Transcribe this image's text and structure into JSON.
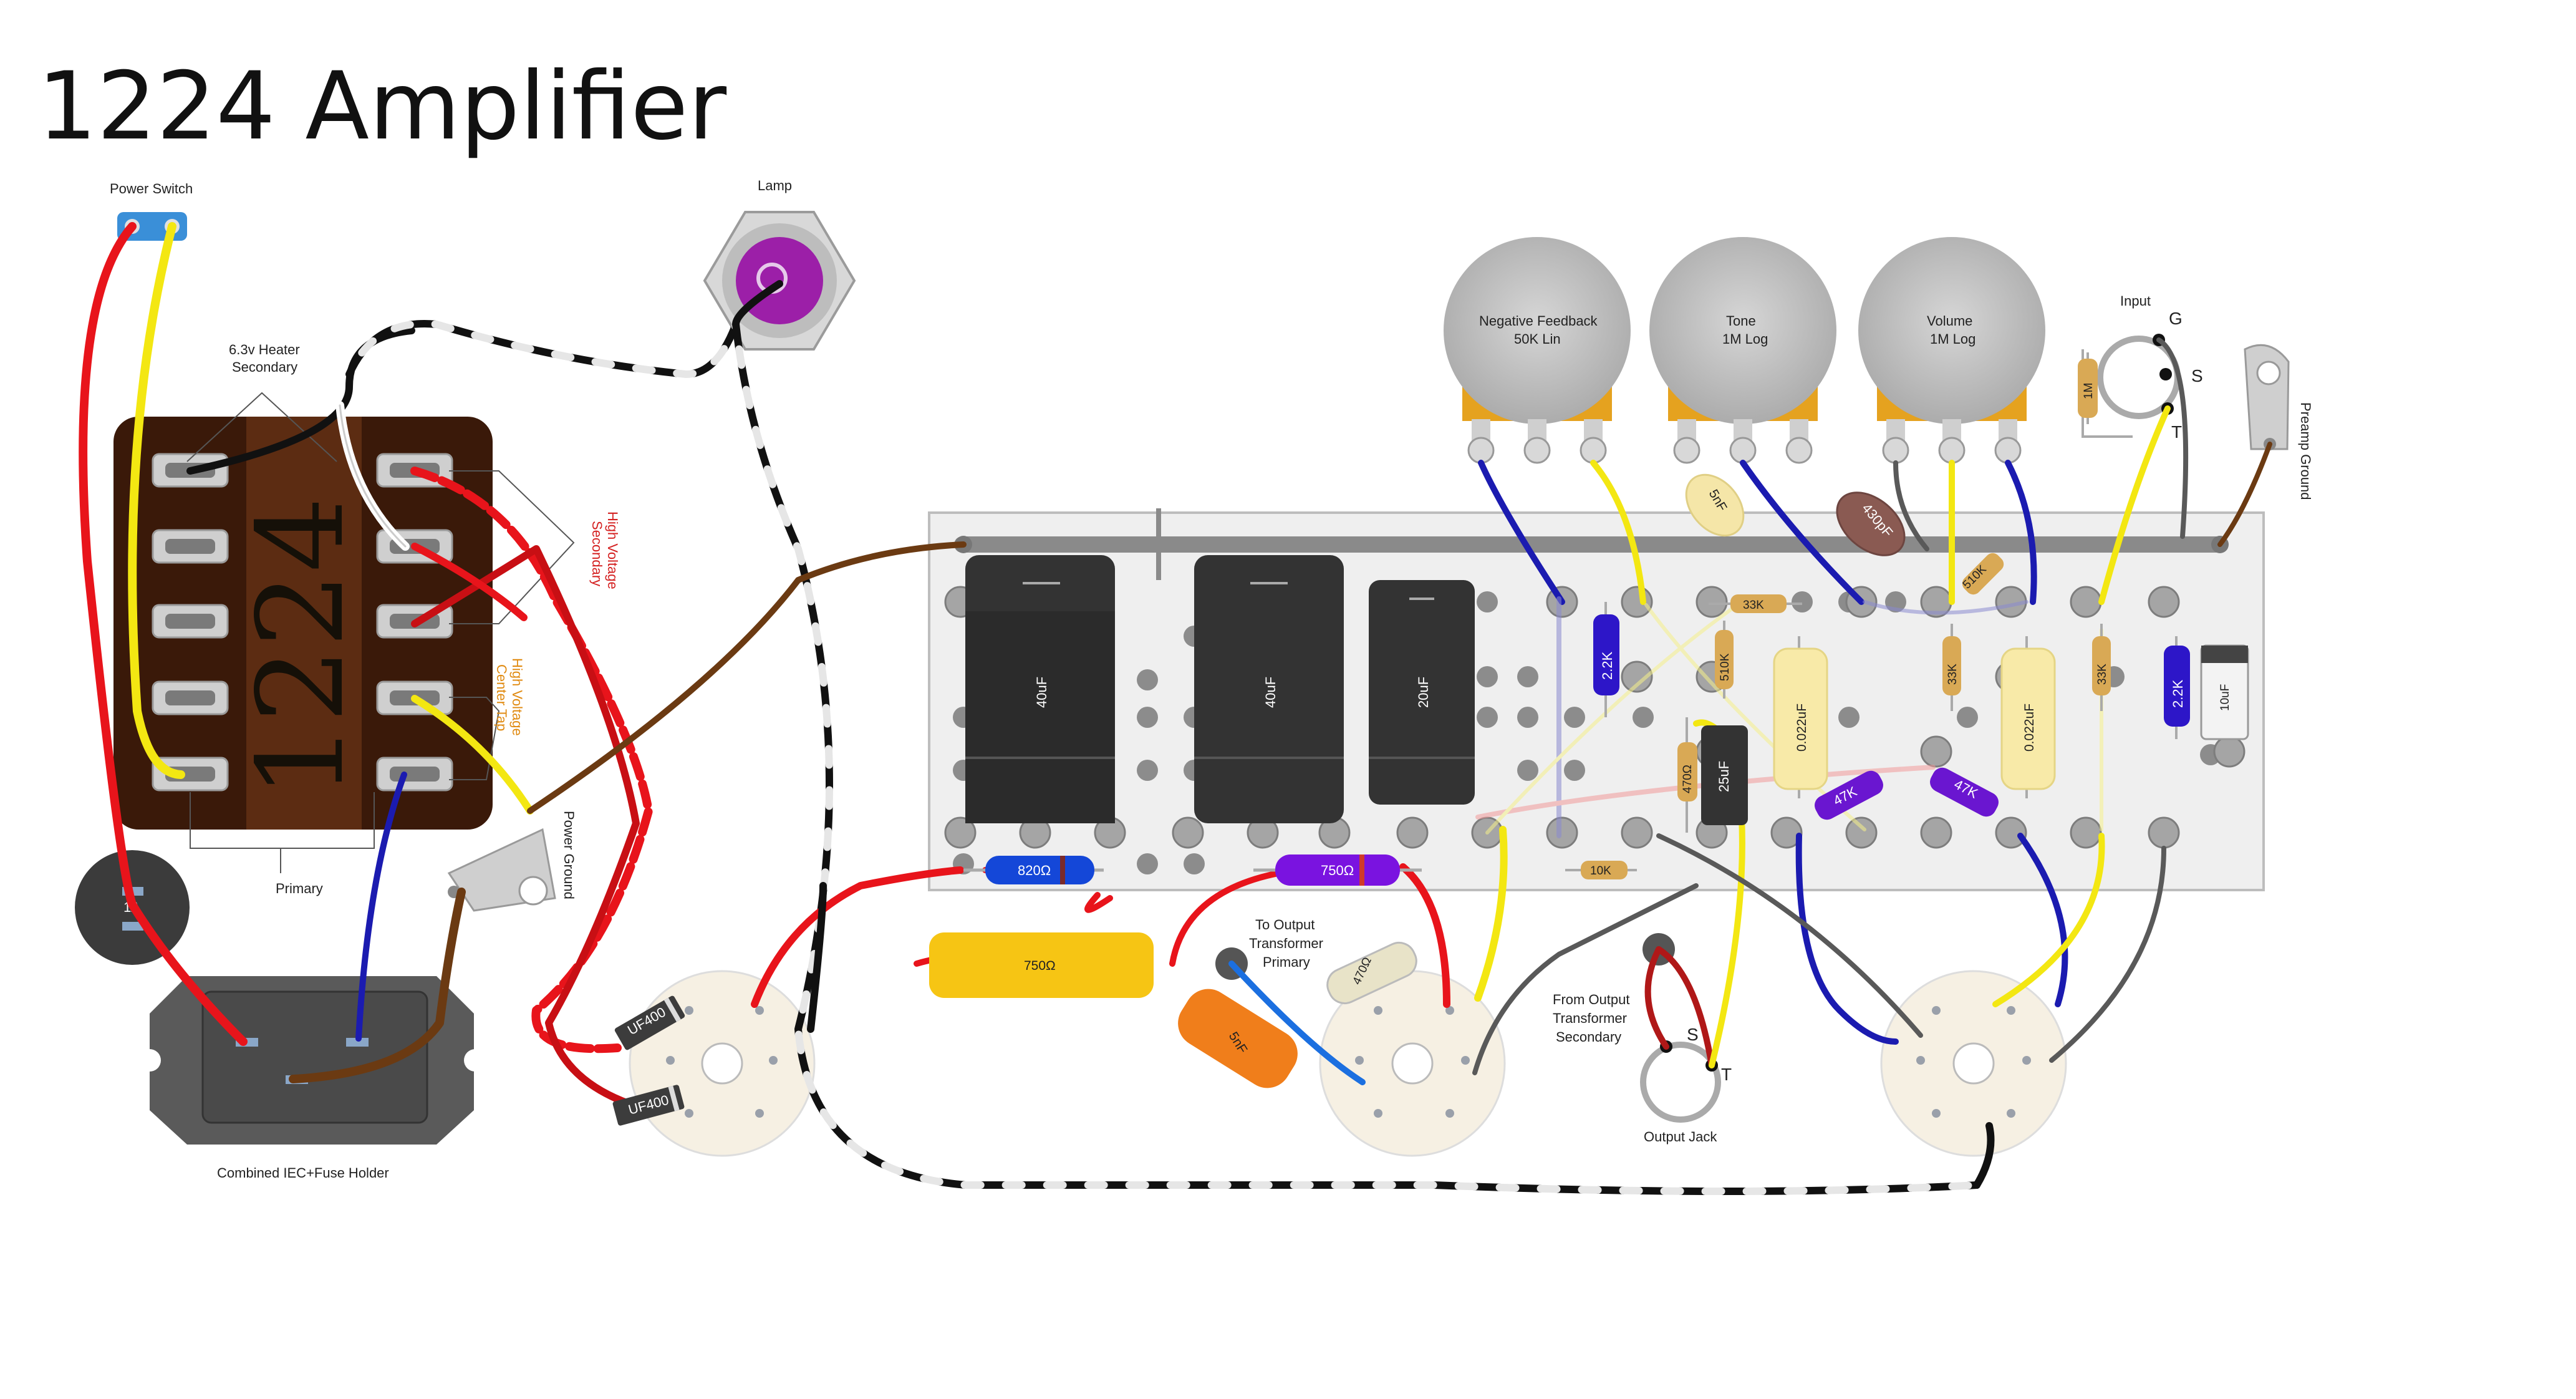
{
  "title": "1224 Amplifier",
  "labels": {
    "power_switch": "Power Switch",
    "lamp": "Lamp",
    "heater_secondary_1": "6.3v Heater",
    "heater_secondary_2": "Secondary",
    "hv_secondary_1": "High Voltage",
    "hv_secondary_2": "Secondary",
    "hv_center_tap_1": "High Voltage",
    "hv_center_tap_2": "Center Tap",
    "power_ground": "Power Ground",
    "primary": "Primary",
    "fuse": "1A",
    "iec": "Combined IEC+Fuse Holder",
    "to_ot_1": "To Output",
    "to_ot_2": "Transformer",
    "to_ot_3": "Primary",
    "from_ot_1": "From Output",
    "from_ot_2": "Transformer",
    "from_ot_3": "Secondary",
    "output_jack": "Output Jack",
    "input": "Input",
    "preamp_ground": "Preamp Ground",
    "transformer_number": "1224",
    "jack_g": "G",
    "jack_s": "S",
    "jack_t": "T",
    "out_s": "S",
    "out_t": "T"
  },
  "pots": [
    {
      "name": "Negative Feedback",
      "value": "50K Lin"
    },
    {
      "name": "Tone",
      "value": "1M Log"
    },
    {
      "name": "Volume",
      "value": "1M Log"
    }
  ],
  "components": {
    "cap_40uf_a": "40uF",
    "cap_40uf_b": "40uF",
    "cap_20uf": "20uF",
    "r_820": "820Ω",
    "r_750_purple": "750Ω",
    "r_750_yellow": "750Ω",
    "cap_5nf_orange": "5nF",
    "r_470_ceramic": "470Ω",
    "cap_5nf_tone": "5nF",
    "cap_430pf": "430pF",
    "r_510k_a": "510K",
    "r_510k_b": "510K",
    "r_33k_a": "33K",
    "r_33k_b": "33K",
    "r_33k_c": "33K",
    "r_2_2k_a": "2.2K",
    "r_2_2k_b": "2.2K",
    "cap_0022_a": "0.022uF",
    "cap_0022_b": "0.022uF",
    "r_47k_a": "47K",
    "r_47k_b": "47K",
    "r_470_small": "470Ω",
    "cap_25uf": "25uF",
    "r_10k": "10K",
    "cap_10uf": "10uF",
    "r_1m": "1M",
    "diode_a": "UF400",
    "diode_b": "UF400"
  },
  "colors": {
    "wire_red": "#e8141b",
    "wire_yellow": "#f3e712",
    "wire_black": "#111111",
    "wire_blue": "#1b1bb0",
    "wire_brown": "#6b3a12",
    "wire_gray": "#595959",
    "transformer": "#3b1a0c",
    "board": "#f0f0f0",
    "pot": "#c8c8c8",
    "cap_electrolytic": "#2e2e2e"
  }
}
